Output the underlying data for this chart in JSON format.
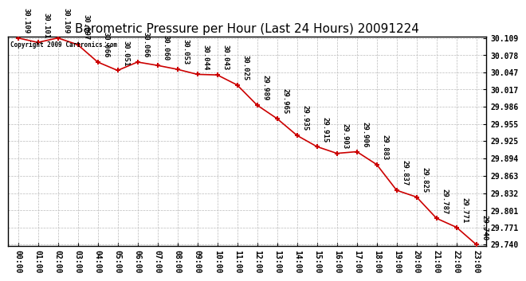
{
  "title": "Barometric Pressure per Hour (Last 24 Hours) 20091224",
  "copyright": "Copyright 2009 Cartronics.com",
  "hours": [
    "00:00",
    "01:00",
    "02:00",
    "03:00",
    "04:00",
    "05:00",
    "06:00",
    "07:00",
    "08:00",
    "09:00",
    "10:00",
    "11:00",
    "12:00",
    "13:00",
    "14:00",
    "15:00",
    "16:00",
    "17:00",
    "18:00",
    "19:00",
    "20:00",
    "21:00",
    "22:00",
    "23:00"
  ],
  "values": [
    30.109,
    30.101,
    30.109,
    30.097,
    30.066,
    30.051,
    30.066,
    30.06,
    30.053,
    30.044,
    30.043,
    30.025,
    29.989,
    29.965,
    29.935,
    29.915,
    29.903,
    29.906,
    29.883,
    29.837,
    29.825,
    29.787,
    29.771,
    29.74
  ],
  "ylim_min": 29.74,
  "ylim_max": 30.109,
  "line_color": "#cc0000",
  "marker_color": "#cc0000",
  "background_color": "#ffffff",
  "grid_color": "#bbbbbb",
  "label_color": "#000000",
  "title_fontsize": 11,
  "tick_fontsize": 7,
  "annotation_fontsize": 6.5,
  "yticks": [
    29.74,
    29.771,
    29.801,
    29.832,
    29.863,
    29.894,
    29.925,
    29.955,
    29.986,
    30.017,
    30.047,
    30.078,
    30.109
  ]
}
